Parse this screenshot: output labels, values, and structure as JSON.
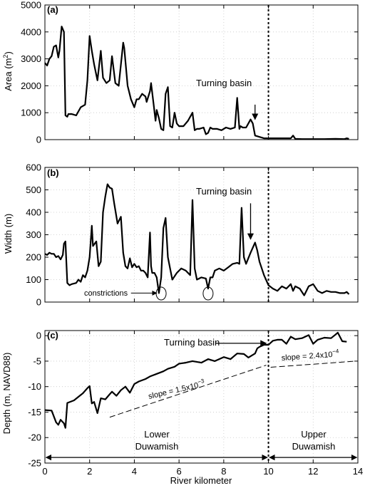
{
  "chart_data": [
    {
      "type": "line",
      "panel_label": "(a)",
      "ylabel": "Area (m",
      "ylabel_sup": "2",
      "ylabel_end": ")",
      "ylim": [
        0,
        5000
      ],
      "xlim": [
        0,
        14
      ],
      "yticks": [
        "0",
        "1000",
        "2000",
        "3000",
        "4000",
        "5000"
      ],
      "grid": true,
      "series": [
        {
          "x": [
            0,
            0.1,
            0.2,
            0.3,
            0.4,
            0.5,
            0.6,
            0.65,
            0.75,
            0.85,
            0.92,
            1.0,
            1.05,
            1.2,
            1.4,
            1.6,
            1.8,
            1.9,
            2.0,
            2.1,
            2.2,
            2.35,
            2.5,
            2.6,
            2.75,
            2.9,
            3.0,
            3.15,
            3.3,
            3.5,
            3.55,
            3.7,
            3.85,
            4.0,
            4.1,
            4.2,
            4.35,
            4.5,
            4.55,
            4.7,
            4.75,
            4.85,
            4.95,
            5.0,
            5.1,
            5.2,
            5.3,
            5.4,
            5.5,
            5.6,
            5.7,
            5.8,
            5.9,
            6.0,
            6.2,
            6.4,
            6.6,
            6.7,
            6.8,
            6.9,
            7.1,
            7.2,
            7.3,
            7.4,
            7.5,
            7.7,
            7.9,
            8.1,
            8.3,
            8.5,
            8.6,
            8.7,
            8.75,
            8.85,
            9.0,
            9.1,
            9.2,
            9.3,
            9.4,
            9.6,
            9.8,
            10.0,
            10.5,
            11.0,
            11.1,
            11.2,
            11.5,
            12.0,
            12.5,
            13.0,
            13.4,
            13.5,
            13.6
          ],
          "y": [
            2850,
            2750,
            3000,
            3100,
            3450,
            3500,
            3050,
            3300,
            4200,
            4000,
            900,
            850,
            950,
            950,
            900,
            1200,
            1300,
            2200,
            3850,
            3300,
            2800,
            2200,
            3300,
            2300,
            2100,
            2200,
            3100,
            2100,
            2000,
            3600,
            3400,
            2000,
            1500,
            1200,
            1500,
            1500,
            1700,
            1600,
            1400,
            1800,
            2100,
            1400,
            700,
            1100,
            800,
            400,
            350,
            1700,
            1950,
            500,
            450,
            1000,
            600,
            500,
            500,
            700,
            1000,
            350,
            400,
            400,
            450,
            200,
            250,
            450,
            400,
            400,
            350,
            450,
            400,
            450,
            1550,
            400,
            500,
            450,
            450,
            600,
            750,
            600,
            150,
            100,
            50,
            50,
            50,
            50,
            150,
            30,
            20,
            20,
            20,
            30,
            20,
            50,
            30
          ]
        }
      ],
      "annotations": [
        {
          "text": "Turning basin"
        }
      ]
    },
    {
      "type": "line",
      "panel_label": "(b)",
      "ylabel": "Width (m)",
      "ylim": [
        0,
        600
      ],
      "xlim": [
        0,
        14
      ],
      "yticks": [
        "0",
        "100",
        "200",
        "300",
        "400",
        "500",
        "600"
      ],
      "grid": true,
      "series": [
        {
          "x": [
            0,
            0.1,
            0.2,
            0.3,
            0.4,
            0.5,
            0.6,
            0.7,
            0.8,
            0.85,
            0.92,
            1.0,
            1.1,
            1.2,
            1.4,
            1.5,
            1.6,
            1.7,
            1.8,
            1.9,
            2.0,
            2.1,
            2.15,
            2.3,
            2.4,
            2.5,
            2.6,
            2.7,
            2.8,
            2.9,
            3.0,
            3.1,
            3.25,
            3.4,
            3.5,
            3.6,
            3.7,
            3.8,
            3.9,
            4.0,
            4.1,
            4.2,
            4.3,
            4.4,
            4.5,
            4.6,
            4.7,
            4.75,
            4.8,
            4.9,
            5.0,
            5.1,
            5.2,
            5.3,
            5.4,
            5.5,
            5.6,
            5.7,
            5.9,
            6.1,
            6.3,
            6.5,
            6.6,
            6.7,
            6.8,
            7.0,
            7.2,
            7.3,
            7.4,
            7.5,
            7.6,
            7.8,
            8.0,
            8.2,
            8.4,
            8.6,
            8.7,
            8.8,
            8.9,
            9.0,
            9.2,
            9.4,
            9.5,
            9.6,
            9.7,
            9.8,
            10.0,
            10.2,
            10.4,
            10.6,
            10.8,
            11.0,
            11.1,
            11.2,
            11.4,
            11.6,
            11.8,
            12.0,
            12.2,
            12.4,
            12.6,
            12.8,
            13.0,
            13.2,
            13.4,
            13.5,
            13.6
          ],
          "y": [
            215,
            210,
            220,
            215,
            215,
            200,
            205,
            190,
            210,
            260,
            270,
            85,
            75,
            80,
            85,
            100,
            90,
            120,
            110,
            140,
            200,
            340,
            250,
            270,
            160,
            180,
            400,
            470,
            525,
            510,
            505,
            440,
            350,
            380,
            220,
            160,
            150,
            195,
            155,
            170,
            155,
            160,
            140,
            140,
            130,
            110,
            310,
            160,
            130,
            130,
            110,
            40,
            110,
            330,
            375,
            200,
            150,
            100,
            130,
            150,
            140,
            120,
            455,
            150,
            100,
            110,
            105,
            60,
            110,
            110,
            140,
            150,
            140,
            155,
            170,
            175,
            170,
            420,
            200,
            170,
            220,
            265,
            230,
            180,
            150,
            120,
            75,
            60,
            50,
            70,
            60,
            80,
            50,
            70,
            60,
            30,
            70,
            80,
            50,
            40,
            50,
            45,
            45,
            40,
            40,
            45,
            35
          ]
        }
      ],
      "annotations": [
        {
          "text": "Turning basin"
        },
        {
          "text": "constrictions"
        }
      ]
    },
    {
      "type": "line",
      "panel_label": "(c)",
      "ylabel": "Depth (m, NAVD88)",
      "xlabel": "River kilometer",
      "ylim": [
        -25,
        1
      ],
      "xlim": [
        0,
        14
      ],
      "yticks": [
        "0",
        "-5",
        "-10",
        "-15",
        "-20",
        "-25"
      ],
      "xticks": [
        "0",
        "2",
        "4",
        "6",
        "8",
        "10",
        "12",
        "14"
      ],
      "grid": true,
      "series": [
        {
          "x": [
            0,
            0.3,
            0.5,
            0.6,
            0.7,
            0.85,
            0.92,
            1.0,
            1.3,
            1.5,
            1.7,
            1.9,
            2.0,
            2.1,
            2.2,
            2.35,
            2.5,
            2.7,
            2.9,
            3.0,
            3.2,
            3.4,
            3.6,
            3.8,
            4.0,
            4.2,
            4.5,
            4.7,
            5.0,
            5.3,
            5.5,
            5.8,
            6.0,
            6.3,
            6.6,
            7.0,
            7.3,
            7.6,
            8.0,
            8.3,
            8.6,
            8.9,
            9.1,
            9.4,
            9.5,
            9.6,
            9.8,
            10.0,
            10.2,
            10.4,
            10.6,
            10.8,
            11.0,
            11.2,
            11.5,
            11.8,
            12.0,
            12.2,
            12.5,
            12.8,
            13.0,
            13.1,
            13.3,
            13.5
          ],
          "y": [
            -14.6,
            -14.7,
            -17.0,
            -17.5,
            -16.5,
            -17.2,
            -18.1,
            -13.2,
            -12.7,
            -12.0,
            -11.3,
            -10.3,
            -9.9,
            -13.3,
            -13.0,
            -15.2,
            -12.3,
            -12.5,
            -11.5,
            -11.0,
            -11.8,
            -10.7,
            -10.0,
            -11.2,
            -9.5,
            -9.0,
            -8.5,
            -8.0,
            -7.5,
            -7.0,
            -6.5,
            -6.1,
            -5.5,
            -5.3,
            -5.0,
            -5.3,
            -4.6,
            -5.0,
            -4.2,
            -4.6,
            -3.5,
            -3.6,
            -4.3,
            -3.5,
            -2.5,
            -2.2,
            -1.8,
            -1.8,
            -1.0,
            -0.8,
            -0.8,
            -1.6,
            -0.2,
            -0.7,
            -0.5,
            0.1,
            -1.6,
            -0.8,
            -0.4,
            -0.5,
            0.2,
            0.6,
            -1.1,
            -1.2
          ]
        }
      ],
      "slopes": [
        {
          "text": "slope = 1.5x10",
          "exp": "−3"
        },
        {
          "text": "slope = 2.4x10",
          "exp": "−4"
        }
      ],
      "annotations": [
        {
          "text": "Turning basin"
        }
      ],
      "regions": [
        {
          "label1": "Lower",
          "label2": "Duwamish"
        },
        {
          "label1": "Upper",
          "label2": "Duwamish"
        }
      ]
    }
  ],
  "colors": {
    "line": "#000000",
    "grid": "#c8c8c8"
  }
}
